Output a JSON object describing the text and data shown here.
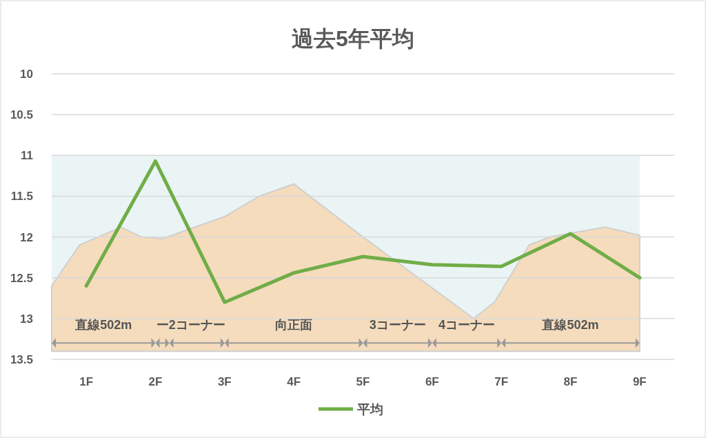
{
  "chart_data": {
    "type": "line",
    "title": "過去5年平均",
    "categories": [
      "1F",
      "2F",
      "3F",
      "4F",
      "5F",
      "6F",
      "7F",
      "8F",
      "9F"
    ],
    "series": [
      {
        "name": "平均",
        "color": "#70ad47",
        "values": [
          12.6,
          11.07,
          12.8,
          12.44,
          12.24,
          12.34,
          12.36,
          11.96,
          12.5
        ]
      }
    ],
    "ylim": [
      13.5,
      10
    ],
    "yticks": [
      10,
      10.5,
      11,
      11.5,
      12,
      12.5,
      13,
      13.5
    ],
    "bands": [
      {
        "axis": "y",
        "from": 11,
        "to": 13.4,
        "color": "#eaf4f4"
      }
    ],
    "grid": "y",
    "legend": "bottom",
    "marker": "none",
    "line_style": "solid",
    "annotations": [
      "直線502m",
      "ー",
      "2コーナー",
      "向正面",
      "3コーナー",
      "4コーナー",
      "直線502m"
    ]
  }
}
